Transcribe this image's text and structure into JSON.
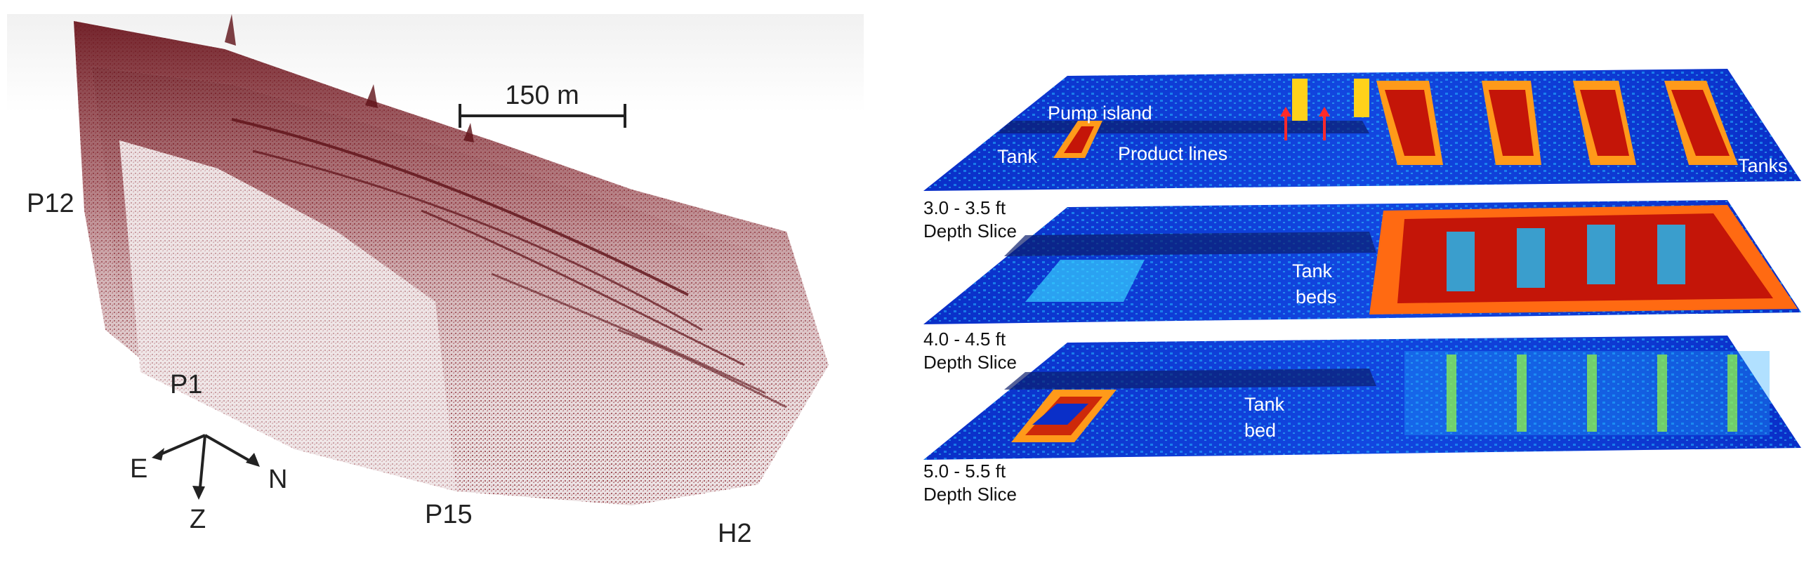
{
  "left_panel": {
    "scale_bar": "150 m",
    "profile_labels": {
      "p12": "P12",
      "p1": "P1",
      "p15": "P15",
      "h2": "H2"
    },
    "axes": {
      "east": "E",
      "north": "N",
      "depth": "Z"
    }
  },
  "right_panel": {
    "slices": [
      {
        "caption_line1": "3.0 - 3.5 ft",
        "caption_line2": "Depth Slice",
        "labels": {
          "tank": "Tank",
          "pump_island": "Pump island",
          "product_lines": "Product lines",
          "tanks": "Tanks"
        }
      },
      {
        "caption_line1": "4.0 - 4.5 ft",
        "caption_line2": "Depth Slice",
        "labels": {
          "tank_beds_1": "Tank",
          "tank_beds_2": "beds"
        }
      },
      {
        "caption_line1": "5.0 - 5.5 ft",
        "caption_line2": "Depth Slice",
        "labels": {
          "tank_bed_1": "Tank",
          "tank_bed_2": "bed"
        }
      }
    ]
  },
  "colors": {
    "seismic": "#7a1f26",
    "slice_base": "#0a2fc8",
    "slice_hot": "#d4150a",
    "arrow_red": "#ff2a2a"
  }
}
